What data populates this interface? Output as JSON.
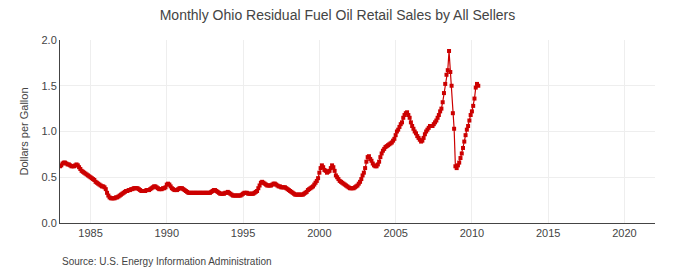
{
  "chart_data": {
    "type": "line",
    "title": "Monthly Ohio Residual Fuel Oil Retail Sales by All Sellers",
    "ylabel": "Dollars per Gallon",
    "annotation": "Source: U.S. Energy Information Administration",
    "color": "#cc0000",
    "marker": "square",
    "line_style": "solid",
    "grid": true,
    "xlim": [
      1983.0,
      2022.0
    ],
    "ylim": [
      0.0,
      2.0
    ],
    "xticks": [
      1985,
      1990,
      1995,
      2000,
      2005,
      2010,
      2015,
      2020
    ],
    "yticks": [
      {
        "value": 0.0,
        "label": "0.0"
      },
      0.5,
      {
        "value": 1.0,
        "label": "1.0"
      },
      1.5,
      {
        "value": 2.0,
        "label": "2.0"
      }
    ],
    "x": [
      1983.0,
      1983.083,
      1983.167,
      1983.25,
      1983.333,
      1983.417,
      1983.5,
      1983.583,
      1983.667,
      1983.75,
      1983.833,
      1983.917,
      1984.0,
      1984.083,
      1984.167,
      1984.25,
      1984.333,
      1984.417,
      1984.5,
      1984.583,
      1984.667,
      1984.75,
      1984.833,
      1984.917,
      1985.0,
      1985.083,
      1985.167,
      1985.25,
      1985.333,
      1985.417,
      1985.5,
      1985.583,
      1985.667,
      1985.75,
      1985.833,
      1985.917,
      1986.0,
      1986.083,
      1986.167,
      1986.25,
      1986.333,
      1986.417,
      1986.5,
      1986.583,
      1986.667,
      1986.75,
      1986.833,
      1986.917,
      1987.0,
      1987.083,
      1987.167,
      1987.25,
      1987.333,
      1987.417,
      1987.5,
      1987.583,
      1987.667,
      1987.75,
      1987.833,
      1987.917,
      1988.0,
      1988.083,
      1988.167,
      1988.25,
      1988.333,
      1988.417,
      1988.5,
      1988.583,
      1988.667,
      1988.75,
      1988.833,
      1988.917,
      1989.0,
      1989.083,
      1989.167,
      1989.25,
      1989.333,
      1989.417,
      1989.5,
      1989.583,
      1989.667,
      1989.75,
      1989.833,
      1989.917,
      1990.0,
      1990.083,
      1990.167,
      1990.25,
      1990.333,
      1990.417,
      1990.5,
      1990.583,
      1990.667,
      1990.75,
      1990.833,
      1990.917,
      1991.0,
      1991.083,
      1991.167,
      1991.25,
      1991.333,
      1991.417,
      1991.5,
      1991.583,
      1991.667,
      1991.75,
      1991.833,
      1991.917,
      1992.0,
      1992.083,
      1992.167,
      1992.25,
      1992.333,
      1992.417,
      1992.5,
      1992.583,
      1992.667,
      1992.75,
      1992.833,
      1992.917,
      1993.0,
      1993.083,
      1993.167,
      1993.25,
      1993.333,
      1993.417,
      1993.5,
      1993.583,
      1993.667,
      1993.75,
      1993.833,
      1993.917,
      1994.0,
      1994.083,
      1994.167,
      1994.25,
      1994.333,
      1994.417,
      1994.5,
      1994.583,
      1994.667,
      1994.75,
      1994.833,
      1994.917,
      1995.0,
      1995.083,
      1995.167,
      1995.25,
      1995.333,
      1995.417,
      1995.5,
      1995.583,
      1995.667,
      1995.75,
      1995.833,
      1995.917,
      1996.0,
      1996.083,
      1996.167,
      1996.25,
      1996.333,
      1996.417,
      1996.5,
      1996.583,
      1996.667,
      1996.75,
      1996.833,
      1996.917,
      1997.0,
      1997.083,
      1997.167,
      1997.25,
      1997.333,
      1997.417,
      1997.5,
      1997.583,
      1997.667,
      1997.75,
      1997.833,
      1997.917,
      1998.0,
      1998.083,
      1998.167,
      1998.25,
      1998.333,
      1998.417,
      1998.5,
      1998.583,
      1998.667,
      1998.75,
      1998.833,
      1998.917,
      1999.0,
      1999.083,
      1999.167,
      1999.25,
      1999.333,
      1999.417,
      1999.5,
      1999.583,
      1999.667,
      1999.75,
      1999.833,
      1999.917,
      2000.0,
      2000.083,
      2000.167,
      2000.25,
      2000.333,
      2000.417,
      2000.5,
      2000.583,
      2000.667,
      2000.75,
      2000.833,
      2000.917,
      2001.0,
      2001.083,
      2001.167,
      2001.25,
      2001.333,
      2001.417,
      2001.5,
      2001.583,
      2001.667,
      2001.75,
      2001.833,
      2001.917,
      2002.0,
      2002.083,
      2002.167,
      2002.25,
      2002.333,
      2002.417,
      2002.5,
      2002.583,
      2002.667,
      2002.75,
      2002.833,
      2002.917,
      2003.0,
      2003.083,
      2003.167,
      2003.25,
      2003.333,
      2003.417,
      2003.5,
      2003.583,
      2003.667,
      2003.75,
      2003.833,
      2003.917,
      2004.0,
      2004.083,
      2004.167,
      2004.25,
      2004.333,
      2004.417,
      2004.5,
      2004.583,
      2004.667,
      2004.75,
      2004.833,
      2004.917,
      2005.0,
      2005.083,
      2005.167,
      2005.25,
      2005.333,
      2005.417,
      2005.5,
      2005.583,
      2005.667,
      2005.75,
      2005.833,
      2005.917,
      2006.0,
      2006.083,
      2006.167,
      2006.25,
      2006.333,
      2006.417,
      2006.5,
      2006.583,
      2006.667,
      2006.75,
      2006.833,
      2006.917,
      2007.0,
      2007.083,
      2007.167,
      2007.25,
      2007.333,
      2007.417,
      2007.5,
      2007.583,
      2007.667,
      2007.75,
      2007.833,
      2007.917,
      2008.0,
      2008.083,
      2008.167,
      2008.25,
      2008.333,
      2008.417,
      2008.5,
      2008.583,
      2008.667,
      2008.75,
      2008.833,
      2008.917,
      2009.0,
      2009.083,
      2009.167,
      2009.25,
      2009.333,
      2009.417,
      2009.5,
      2009.583,
      2009.667,
      2009.75,
      2009.833,
      2009.917,
      2010.0,
      2010.083,
      2010.167,
      2010.25,
      2010.333,
      2010.417
    ],
    "values": [
      0.62,
      0.63,
      0.65,
      0.66,
      0.66,
      0.65,
      0.64,
      0.64,
      0.63,
      0.62,
      0.62,
      0.62,
      0.63,
      0.64,
      0.63,
      0.61,
      0.59,
      0.57,
      0.56,
      0.55,
      0.54,
      0.53,
      0.52,
      0.51,
      0.5,
      0.49,
      0.48,
      0.47,
      0.45,
      0.44,
      0.43,
      0.42,
      0.41,
      0.4,
      0.4,
      0.39,
      0.37,
      0.33,
      0.3,
      0.28,
      0.27,
      0.27,
      0.27,
      0.27,
      0.28,
      0.28,
      0.29,
      0.3,
      0.31,
      0.32,
      0.33,
      0.34,
      0.35,
      0.35,
      0.36,
      0.36,
      0.37,
      0.37,
      0.38,
      0.38,
      0.38,
      0.38,
      0.37,
      0.36,
      0.35,
      0.35,
      0.35,
      0.35,
      0.36,
      0.36,
      0.36,
      0.37,
      0.38,
      0.39,
      0.4,
      0.4,
      0.39,
      0.38,
      0.37,
      0.37,
      0.37,
      0.38,
      0.38,
      0.39,
      0.42,
      0.43,
      0.42,
      0.4,
      0.38,
      0.37,
      0.36,
      0.36,
      0.36,
      0.37,
      0.38,
      0.38,
      0.38,
      0.37,
      0.36,
      0.35,
      0.34,
      0.33,
      0.33,
      0.33,
      0.33,
      0.33,
      0.33,
      0.33,
      0.33,
      0.33,
      0.33,
      0.33,
      0.33,
      0.33,
      0.33,
      0.33,
      0.33,
      0.33,
      0.33,
      0.34,
      0.35,
      0.36,
      0.36,
      0.35,
      0.34,
      0.33,
      0.32,
      0.32,
      0.32,
      0.32,
      0.33,
      0.33,
      0.34,
      0.33,
      0.32,
      0.31,
      0.3,
      0.3,
      0.3,
      0.3,
      0.3,
      0.3,
      0.3,
      0.31,
      0.32,
      0.33,
      0.33,
      0.33,
      0.32,
      0.32,
      0.32,
      0.32,
      0.32,
      0.33,
      0.34,
      0.35,
      0.38,
      0.41,
      0.44,
      0.45,
      0.44,
      0.43,
      0.42,
      0.41,
      0.41,
      0.41,
      0.41,
      0.42,
      0.43,
      0.43,
      0.42,
      0.41,
      0.4,
      0.4,
      0.39,
      0.39,
      0.39,
      0.39,
      0.38,
      0.37,
      0.36,
      0.35,
      0.34,
      0.33,
      0.32,
      0.31,
      0.31,
      0.31,
      0.31,
      0.31,
      0.31,
      0.31,
      0.32,
      0.33,
      0.34,
      0.36,
      0.37,
      0.38,
      0.39,
      0.4,
      0.42,
      0.44,
      0.46,
      0.49,
      0.55,
      0.6,
      0.63,
      0.61,
      0.58,
      0.57,
      0.55,
      0.56,
      0.57,
      0.6,
      0.63,
      0.61,
      0.57,
      0.52,
      0.5,
      0.48,
      0.46,
      0.45,
      0.44,
      0.43,
      0.42,
      0.41,
      0.4,
      0.39,
      0.38,
      0.38,
      0.38,
      0.38,
      0.39,
      0.4,
      0.41,
      0.43,
      0.45,
      0.48,
      0.52,
      0.55,
      0.6,
      0.67,
      0.72,
      0.73,
      0.7,
      0.68,
      0.65,
      0.63,
      0.62,
      0.62,
      0.64,
      0.67,
      0.72,
      0.76,
      0.79,
      0.81,
      0.83,
      0.84,
      0.85,
      0.86,
      0.87,
      0.88,
      0.9,
      0.92,
      0.96,
      1.0,
      1.02,
      1.05,
      1.08,
      1.1,
      1.15,
      1.18,
      1.2,
      1.21,
      1.18,
      1.15,
      1.1,
      1.06,
      1.03,
      1.0,
      0.98,
      0.95,
      0.93,
      0.91,
      0.89,
      0.9,
      0.93,
      0.97,
      1.0,
      1.02,
      1.04,
      1.06,
      1.06,
      1.06,
      1.08,
      1.1,
      1.12,
      1.15,
      1.18,
      1.22,
      1.25,
      1.32,
      1.42,
      1.52,
      1.62,
      1.67,
      1.88,
      1.65,
      1.5,
      1.2,
      1.03,
      0.62,
      0.6,
      0.63,
      0.66,
      0.71,
      0.76,
      0.82,
      0.89,
      0.96,
      1.02,
      1.06,
      1.12,
      1.18,
      1.22,
      1.28,
      1.36,
      1.48,
      1.52,
      1.5
    ]
  }
}
